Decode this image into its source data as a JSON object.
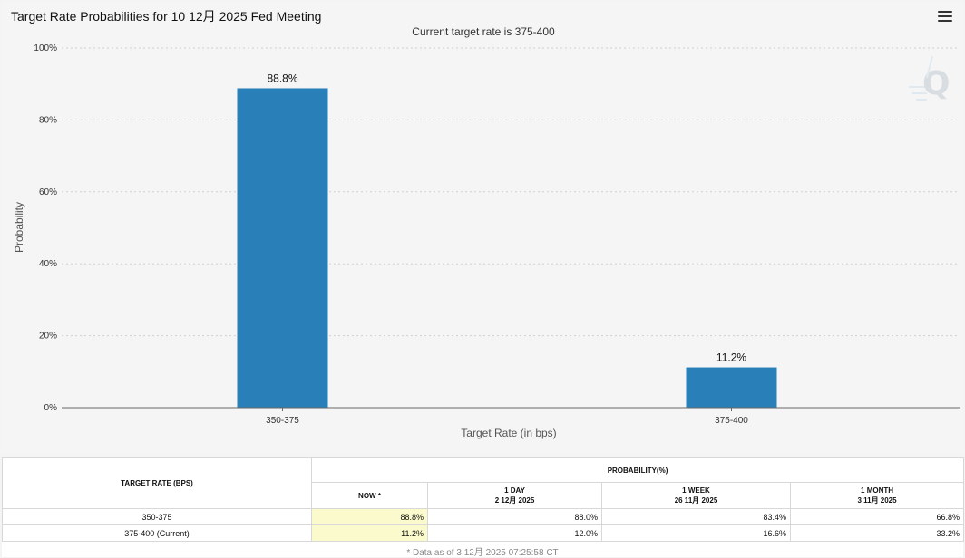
{
  "chart_title": "Target Rate Probabilities for 10 12月 2025 Fed Meeting",
  "chart_data": {
    "type": "bar",
    "title": "Target Rate Probabilities for 10 12月 2025 Fed Meeting",
    "subtitle": "Current target rate is 375-400",
    "categories": [
      "350-375",
      "375-400"
    ],
    "values": [
      88.8,
      11.2
    ],
    "data_labels": [
      "88.8%",
      "11.2%"
    ],
    "xlabel": "Target Rate (in bps)",
    "ylabel": "Probability",
    "ylim": [
      0,
      100
    ],
    "yticks": [
      0,
      20,
      40,
      60,
      80,
      100
    ],
    "ytick_labels": [
      "0%",
      "20%",
      "40%",
      "60%",
      "80%",
      "100%"
    ],
    "grid": true,
    "bar_color": "#2980b9"
  },
  "table": {
    "target_header": "TARGET RATE (BPS)",
    "probability_header": "PROBABILITY(%)",
    "columns": [
      {
        "label": "NOW *",
        "date": ""
      },
      {
        "label": "1 DAY",
        "date": "2 12月 2025"
      },
      {
        "label": "1 WEEK",
        "date": "26 11月 2025"
      },
      {
        "label": "1 MONTH",
        "date": "3 11月 2025"
      }
    ],
    "rows": [
      {
        "rate": "350-375",
        "values": [
          "88.8%",
          "88.0%",
          "83.4%",
          "66.8%"
        ]
      },
      {
        "rate": "375-400 (Current)",
        "values": [
          "11.2%",
          "12.0%",
          "16.6%",
          "33.2%"
        ]
      }
    ],
    "footnote": "* Data as of 3 12月 2025 07:25:58 CT"
  }
}
